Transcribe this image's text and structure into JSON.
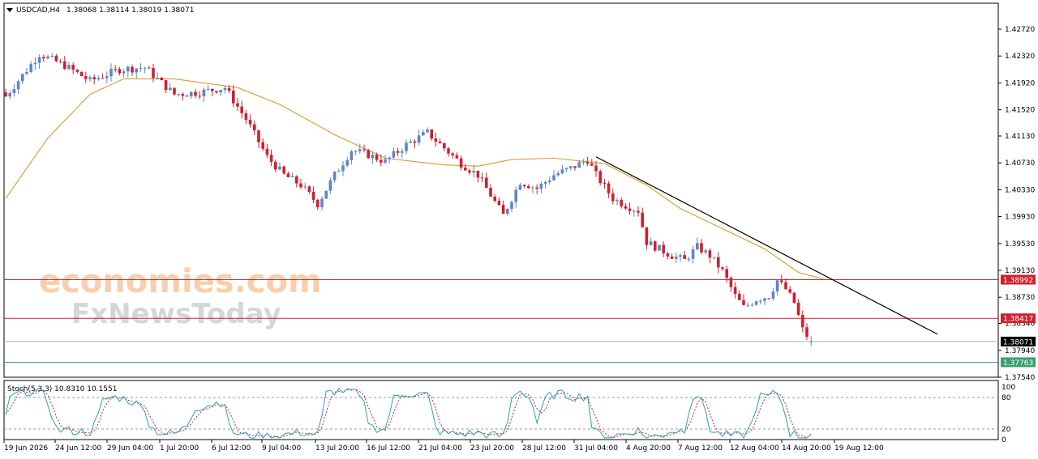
{
  "header": {
    "symbol": "USDCAD,H4",
    "ohlc": "1.38068 1.38114 1.38019 1.38071"
  },
  "watermark": {
    "line1": "economies.com",
    "line2": "FxNewsToday"
  },
  "colors": {
    "bull": "#5b86c9",
    "bear": "#d0202e",
    "ma": "#d99a2b",
    "trendline": "#000000",
    "level_red": "#d0202e",
    "level_green": "#3aa070",
    "current": "#000000",
    "stoch_main": "#2aa0c0",
    "stoch_signal": "#d0202e"
  },
  "chart_data": {
    "type": "candlestick",
    "symbol": "USDCAD",
    "timeframe": "H4",
    "ylim": [
      1.3754,
      1.4292
    ],
    "y_ticks": [
      "1.42720",
      "1.42320",
      "1.41920",
      "1.41520",
      "1.41130",
      "1.40730",
      "1.40330",
      "1.39930",
      "1.39530",
      "1.39130",
      "1.38730",
      "1.38340",
      "1.37940",
      "1.37540"
    ],
    "x_labels": [
      "19 Jun 2026",
      "24 Jun 12:00",
      "29 Jun 04:00",
      "1 Jul 20:00",
      "6 Jul 12:00",
      "9 Jul 04:00",
      "13 Jul 20:00",
      "16 Jul 12:00",
      "21 Jul 04:00",
      "23 Jul 20:00",
      "28 Jul 12:00",
      "31 Jul 04:00",
      "4 Aug 20:00",
      "7 Aug 12:00",
      "12 Aug 04:00",
      "14 Aug 20:00",
      "19 Aug 12:00"
    ],
    "close_path": [
      [
        0,
        1.4172
      ],
      [
        8,
        1.4235
      ],
      [
        14,
        1.4218
      ],
      [
        20,
        1.4195
      ],
      [
        27,
        1.4212
      ],
      [
        33,
        1.4215
      ],
      [
        40,
        1.4175
      ],
      [
        46,
        1.4178
      ],
      [
        52,
        1.4185
      ],
      [
        57,
        1.4138
      ],
      [
        62,
        1.4082
      ],
      [
        66,
        1.4055
      ],
      [
        70,
        1.404
      ],
      [
        74,
        1.4012
      ],
      [
        78,
        1.4055
      ],
      [
        82,
        1.4092
      ],
      [
        86,
        1.4085
      ],
      [
        90,
        1.4075
      ],
      [
        95,
        1.41
      ],
      [
        100,
        1.4118
      ],
      [
        104,
        1.4095
      ],
      [
        108,
        1.4072
      ],
      [
        112,
        1.4055
      ],
      [
        116,
        1.4015
      ],
      [
        118,
        1.3995
      ],
      [
        122,
        1.4045
      ],
      [
        126,
        1.4035
      ],
      [
        130,
        1.4055
      ],
      [
        134,
        1.4065
      ],
      [
        138,
        1.4078
      ],
      [
        140,
        1.4055
      ],
      [
        144,
        1.402
      ],
      [
        147,
        1.401
      ],
      [
        150,
        1.4002
      ],
      [
        152,
        1.3955
      ],
      [
        155,
        1.3945
      ],
      [
        158,
        1.3935
      ],
      [
        161,
        1.3928
      ],
      [
        164,
        1.3948
      ],
      [
        167,
        1.3935
      ],
      [
        170,
        1.3912
      ],
      [
        173,
        1.3875
      ],
      [
        175,
        1.3858
      ],
      [
        178,
        1.387
      ],
      [
        181,
        1.3875
      ],
      [
        183,
        1.3898
      ],
      [
        185,
        1.3885
      ],
      [
        187,
        1.3865
      ],
      [
        189,
        1.3825
      ],
      [
        191,
        1.3807
      ]
    ],
    "last_candle": {
      "open": 1.38068,
      "high": 1.38114,
      "low": 1.38019,
      "close": 1.38071
    },
    "moving_average": [
      [
        0,
        1.402
      ],
      [
        10,
        1.411
      ],
      [
        20,
        1.4175
      ],
      [
        28,
        1.4198
      ],
      [
        40,
        1.4198
      ],
      [
        55,
        1.4185
      ],
      [
        65,
        1.416
      ],
      [
        78,
        1.4115
      ],
      [
        90,
        1.408
      ],
      [
        104,
        1.407
      ],
      [
        112,
        1.4068
      ],
      [
        120,
        1.4078
      ],
      [
        130,
        1.408
      ],
      [
        142,
        1.4072
      ],
      [
        152,
        1.404
      ],
      [
        160,
        1.4005
      ],
      [
        170,
        1.3975
      ],
      [
        180,
        1.3945
      ],
      [
        188,
        1.391
      ],
      [
        194,
        1.39
      ]
    ],
    "trendline": [
      [
        140,
        1.4082
      ],
      [
        221,
        1.3818
      ]
    ],
    "levels": [
      {
        "label": "1.38992",
        "value": 1.38992,
        "kind": "resistance"
      },
      {
        "label": "1.38417",
        "value": 1.38417,
        "kind": "resistance"
      },
      {
        "label": "1.38071",
        "value": 1.38071,
        "kind": "current"
      },
      {
        "label": "1.37763",
        "value": 1.37763,
        "kind": "support"
      }
    ],
    "indicator": {
      "label": "Stoch(5,3,3) 10.8310 10.1551",
      "main": 10.831,
      "signal": 10.1551,
      "ylim": [
        0,
        100
      ],
      "levels": [
        20,
        80
      ],
      "y_ticks": [
        "100",
        "80",
        "20",
        "0"
      ]
    }
  }
}
